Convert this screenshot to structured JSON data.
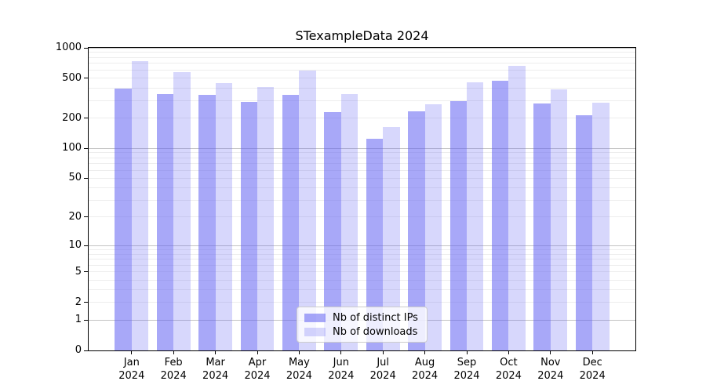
{
  "figure": {
    "title": "STexampleData 2024"
  },
  "chart_data": {
    "type": "bar",
    "title": "STexampleData 2024",
    "xlabel": "",
    "ylabel": "",
    "yscale": "log1p",
    "ylim": [
      0,
      1000
    ],
    "ytick_labels": [
      0,
      1,
      2,
      5,
      10,
      20,
      50,
      100,
      200,
      500,
      1000
    ],
    "grid": {
      "major": [
        1,
        10,
        100,
        1000
      ],
      "minor": [
        2,
        3,
        4,
        5,
        6,
        7,
        8,
        9,
        20,
        30,
        40,
        50,
        60,
        70,
        80,
        90,
        200,
        300,
        400,
        500,
        600,
        700,
        800,
        900
      ]
    },
    "x_categories": [
      "Jan 2024",
      "Feb 2024",
      "Mar 2024",
      "Apr 2024",
      "May 2024",
      "Jun 2024",
      "Jul 2024",
      "Aug 2024",
      "Sep 2024",
      "Oct 2024",
      "Nov 2024",
      "Dec 2024"
    ],
    "series": [
      {
        "name": "Nb of distinct IPs",
        "values": [
          391,
          350,
          338,
          288,
          340,
          228,
          124,
          235,
          295,
          473,
          281,
          215
        ],
        "color": "#6161f2",
        "fill_opacity": 0.55
      },
      {
        "name": "Nb of downloads",
        "values": [
          737,
          577,
          448,
          408,
          594,
          347,
          164,
          277,
          455,
          659,
          385,
          287
        ],
        "color": "#6161f2",
        "fill_opacity": 0.25
      }
    ],
    "legend": {
      "position": "lower center",
      "labels": [
        "Nb of distinct IPs",
        "Nb of downloads"
      ]
    },
    "colors": {
      "background": "#ffffff",
      "spine": "#000000",
      "text": "#000000",
      "grid_major": "#c3c3c3",
      "grid_minor": "#ededed",
      "legend_bg": "rgba(255,255,255,0.8)",
      "legend_border": "#cccccc"
    }
  }
}
